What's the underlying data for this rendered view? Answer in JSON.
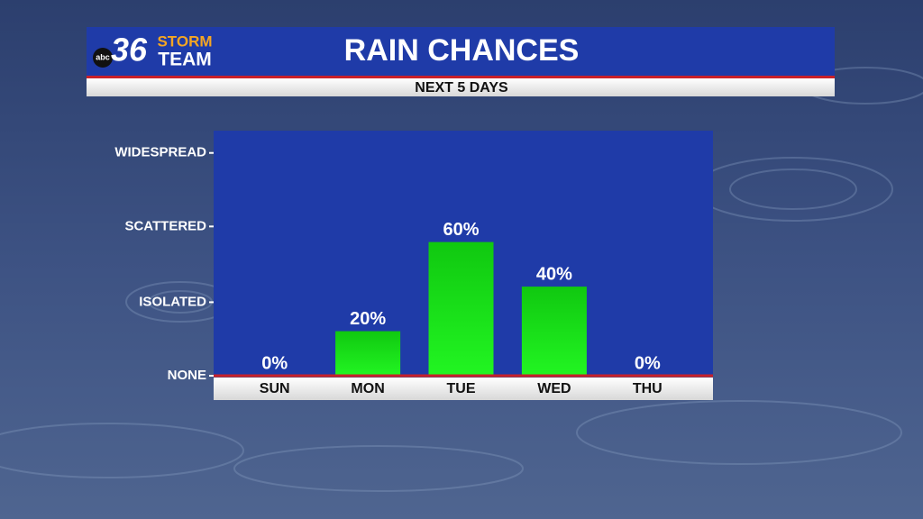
{
  "chart_data": {
    "type": "bar",
    "title": "RAIN CHANCES",
    "subtitle": "NEXT 5 DAYS",
    "logo": {
      "network": "abc",
      "number": "36",
      "line1": "STORM",
      "line2": "TEAM"
    },
    "categories": [
      "SUN",
      "MON",
      "TUE",
      "WED",
      "THU"
    ],
    "values": [
      0,
      20,
      60,
      40,
      0
    ],
    "value_labels": [
      "0%",
      "20%",
      "60%",
      "40%",
      "0%"
    ],
    "color": "#19e619",
    "ylim": [
      0,
      110
    ],
    "yticks": [
      {
        "value": 0,
        "label": "NONE"
      },
      {
        "value": 33,
        "label": "ISOLATED"
      },
      {
        "value": 67,
        "label": "SCATTERED"
      },
      {
        "value": 100,
        "label": "WIDESPREAD"
      }
    ]
  }
}
